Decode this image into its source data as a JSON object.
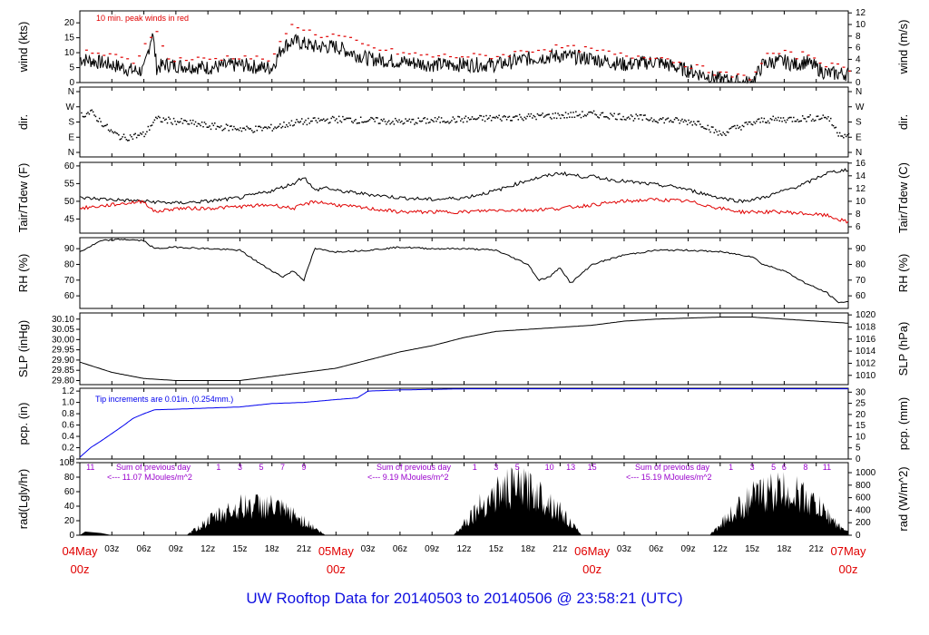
{
  "footer_title": "UW Rooftop Data for 20140503  to  20140506 @ 23:58:21  (UTC)",
  "colors": {
    "footer": "#1010e0",
    "red": "#e00000",
    "blue": "#0000ee",
    "purple": "#9900cc"
  },
  "chart_data": [
    {
      "type": "line",
      "name": "wind",
      "ylabel_left": "wind (kts)",
      "ylabel_right": "wind (m/s)",
      "ylim": [
        0,
        24
      ],
      "ticks_left": [
        "0",
        "5",
        "10",
        "15",
        "20"
      ],
      "ticks_right": [
        "0",
        "2",
        "4",
        "6",
        "8",
        "10",
        "12"
      ],
      "annotation": "10 min. peak winds in red",
      "series": [
        {
          "color": "#000000",
          "x": [
            0,
            3,
            5,
            6,
            6.8,
            7.2,
            8,
            12,
            15,
            17,
            18,
            19,
            20,
            21,
            22,
            24,
            27,
            30,
            33,
            36,
            39,
            42,
            45,
            48,
            51,
            54,
            57,
            60,
            62,
            63,
            64,
            65,
            66,
            67,
            68,
            69,
            70,
            72
          ],
          "values": [
            8,
            6,
            4,
            4,
            17,
            5,
            6,
            5,
            6,
            5,
            5,
            12,
            14,
            13,
            12,
            12,
            8,
            7,
            6,
            6,
            6,
            8,
            9,
            8,
            6,
            7,
            4,
            1,
            0,
            0,
            6,
            7,
            7,
            6,
            7,
            5,
            3,
            3
          ]
        },
        {
          "color": "#e00000",
          "x": [
            0,
            3,
            5,
            7,
            8,
            12,
            15,
            17,
            18,
            19,
            20,
            21,
            22,
            24,
            27,
            30,
            33,
            36,
            39,
            42,
            45,
            48,
            51,
            54,
            57,
            60,
            62,
            63,
            64,
            65,
            66,
            67,
            68,
            69,
            70,
            72
          ],
          "values": [
            11,
            9,
            7,
            19,
            8,
            8,
            9,
            8,
            8,
            16,
            20,
            18,
            16,
            16,
            12,
            10,
            9,
            9,
            9,
            11,
            12,
            11,
            9,
            9,
            6,
            3,
            2,
            2,
            9,
            10,
            10,
            9,
            10,
            8,
            6,
            5
          ]
        }
      ]
    },
    {
      "type": "scatter",
      "name": "dir",
      "ylabel_left": "dir.",
      "ylabel_right": "dir.",
      "ticks": [
        "N",
        "E",
        "S",
        "W",
        "N"
      ],
      "x": [
        0,
        1,
        2,
        3,
        4,
        5,
        6,
        7,
        8,
        10,
        12,
        14,
        16,
        18,
        20,
        22,
        24,
        26,
        28,
        30,
        32,
        34,
        36,
        38,
        40,
        42,
        44,
        46,
        48,
        50,
        52,
        54,
        56,
        58,
        60,
        61,
        62,
        64,
        66,
        68,
        70,
        71,
        72
      ],
      "values": [
        225,
        240,
        180,
        120,
        90,
        100,
        110,
        200,
        195,
        180,
        160,
        150,
        140,
        150,
        180,
        190,
        200,
        195,
        190,
        185,
        190,
        195,
        200,
        205,
        210,
        215,
        220,
        225,
        230,
        220,
        210,
        200,
        190,
        180,
        110,
        140,
        160,
        195,
        200,
        205,
        215,
        120,
        100
      ]
    },
    {
      "type": "line",
      "name": "tair_tdew",
      "ylabel_left": "Tair/Tdew (F)",
      "ylabel_right": "Tair/Tdew (C)",
      "ylim": [
        41,
        61
      ],
      "ticks_left": [
        "45",
        "50",
        "55",
        "60"
      ],
      "ticks_right": [
        "6",
        "8",
        "10",
        "12",
        "14",
        "16"
      ],
      "series": [
        {
          "color": "#000000",
          "x": [
            0,
            3,
            6,
            9,
            12,
            15,
            18,
            20,
            21,
            22,
            23,
            24,
            27,
            30,
            33,
            36,
            39,
            42,
            45,
            47,
            48,
            50,
            53,
            56,
            60,
            62,
            64,
            66,
            68,
            70,
            72
          ],
          "values": [
            51,
            50.5,
            50,
            49.5,
            50,
            51,
            53,
            55,
            57,
            53,
            54,
            53,
            52,
            51,
            50.5,
            51,
            53,
            56,
            58,
            57,
            57,
            56,
            55,
            54,
            51,
            50,
            51,
            53,
            55,
            58,
            59
          ]
        },
        {
          "color": "#e00000",
          "x": [
            0,
            3,
            6,
            7,
            9,
            12,
            15,
            18,
            20,
            21,
            22,
            24,
            27,
            30,
            33,
            36,
            39,
            42,
            45,
            48,
            51,
            54,
            57,
            60,
            62,
            64,
            66,
            68,
            70,
            72
          ],
          "values": [
            48,
            49,
            50,
            47,
            48,
            48,
            48.5,
            49,
            48,
            49,
            50,
            49,
            48,
            47,
            47,
            47,
            47.5,
            47.5,
            48,
            49,
            50,
            50.5,
            50,
            48,
            47,
            47,
            47,
            46.5,
            46,
            44
          ]
        }
      ]
    },
    {
      "type": "line",
      "name": "rh",
      "ylabel_left": "RH (%)",
      "ylabel_right": "RH (%)",
      "ylim": [
        52,
        97
      ],
      "ticks_left": [
        "60",
        "70",
        "80",
        "90"
      ],
      "ticks_right": [
        "60",
        "70",
        "80",
        "90"
      ],
      "series": [
        {
          "color": "#000000",
          "x": [
            0,
            2,
            4,
            6,
            7,
            9,
            12,
            15,
            17,
            18,
            19,
            20,
            21,
            22,
            24,
            27,
            30,
            33,
            36,
            39,
            42,
            43,
            44,
            45,
            46,
            48,
            51,
            54,
            57,
            60,
            63,
            64,
            66,
            68,
            70,
            71,
            72
          ],
          "values": [
            88,
            95,
            96,
            95,
            90,
            91,
            90,
            89,
            80,
            76,
            72,
            76,
            70,
            90,
            88,
            89,
            91,
            90,
            90,
            89,
            80,
            70,
            72,
            78,
            68,
            80,
            86,
            89,
            89,
            88,
            85,
            80,
            76,
            68,
            62,
            56,
            56
          ]
        }
      ]
    },
    {
      "type": "line",
      "name": "slp",
      "ylabel_left": "SLP (inHg)",
      "ylabel_right": "SLP (hPa)",
      "ylim": [
        29.78,
        30.13
      ],
      "ticks_left": [
        "29.80",
        "29.85",
        "29.90",
        "29.95",
        "30.00",
        "30.05",
        "30.10"
      ],
      "ticks_right": [
        "1010",
        "1012",
        "1014",
        "1016",
        "1018",
        "1020"
      ],
      "series": [
        {
          "color": "#000000",
          "x": [
            0,
            3,
            6,
            9,
            12,
            15,
            18,
            21,
            24,
            27,
            30,
            33,
            36,
            39,
            42,
            45,
            48,
            51,
            54,
            57,
            60,
            63,
            66,
            69,
            72
          ],
          "values": [
            29.89,
            29.84,
            29.81,
            29.8,
            29.8,
            29.8,
            29.82,
            29.84,
            29.86,
            29.9,
            29.94,
            29.97,
            30.01,
            30.04,
            30.05,
            30.06,
            30.07,
            30.09,
            30.1,
            30.105,
            30.11,
            30.11,
            30.1,
            30.09,
            30.08
          ]
        }
      ]
    },
    {
      "type": "line",
      "name": "pcp",
      "ylabel_left": "pcp. (in)",
      "ylabel_right": "pcp. (mm)",
      "ylim": [
        0,
        1.25
      ],
      "ticks_left": [
        "0",
        "0.2",
        "0.4",
        "0.6",
        "0.8",
        "1.0",
        "1.2"
      ],
      "ticks_right": [
        "0",
        "5",
        "10",
        "15",
        "20",
        "25",
        "30"
      ],
      "annotation": "Tip increments are 0.01in. (0.254mm.)",
      "series": [
        {
          "color": "#0000ee",
          "x": [
            0,
            1,
            2,
            3,
            4,
            5,
            6,
            7,
            9,
            12,
            15,
            18,
            21,
            24,
            26,
            27,
            30,
            33,
            36,
            39,
            42,
            45,
            48,
            51,
            54,
            57,
            60,
            63,
            66,
            69,
            72
          ],
          "values": [
            0.03,
            0.2,
            0.32,
            0.45,
            0.58,
            0.72,
            0.8,
            0.87,
            0.88,
            0.9,
            0.92,
            0.98,
            1.0,
            1.05,
            1.08,
            1.2,
            1.22,
            1.23,
            1.24,
            1.24,
            1.24,
            1.24,
            1.24,
            1.24,
            1.24,
            1.24,
            1.24,
            1.24,
            1.24,
            1.24,
            1.24
          ]
        }
      ]
    },
    {
      "type": "area",
      "name": "rad",
      "ylabel_left": "rad(Lgly/hr)",
      "ylabel_right": "rad (W/m^2)",
      "ylim": [
        0,
        100
      ],
      "ticks_left": [
        "0",
        "20",
        "40",
        "60",
        "80",
        "100"
      ],
      "ticks_right": [
        "0",
        "200",
        "400",
        "600",
        "800",
        "1000"
      ],
      "days": [
        {
          "start": 10,
          "peak": 60,
          "end": 23,
          "sum_label": "Sum of previous day",
          "sum_value": "<--- 11.07 MJoules/m^2",
          "hour_label": "11"
        },
        {
          "start": 35,
          "peak": 95,
          "end": 47,
          "sum_label": "Sum of previous day",
          "sum_value": "<--- 9.19 MJoules/m^2",
          "hour_label": "9"
        },
        {
          "start": 59,
          "peak": 90,
          "end": 72,
          "sum_label": "Sum of previous day",
          "sum_value": "<--- 15.19 MJoules/m^2",
          "hour_label": "15"
        }
      ],
      "hour_marks": [
        {
          "x": 1,
          "label": "11"
        },
        {
          "x": 13,
          "label": "1"
        },
        {
          "x": 15,
          "label": "3"
        },
        {
          "x": 17,
          "label": "5"
        },
        {
          "x": 19,
          "label": "7"
        },
        {
          "x": 21,
          "label": "9"
        },
        {
          "x": 37,
          "label": "1"
        },
        {
          "x": 39,
          "label": "3"
        },
        {
          "x": 41,
          "label": "5"
        },
        {
          "x": 44,
          "label": "10"
        },
        {
          "x": 46,
          "label": "13"
        },
        {
          "x": 48,
          "label": "15"
        },
        {
          "x": 61,
          "label": "1"
        },
        {
          "x": 63,
          "label": "3"
        },
        {
          "x": 65,
          "label": "5"
        },
        {
          "x": 66,
          "label": "6"
        },
        {
          "x": 68,
          "label": "8"
        },
        {
          "x": 70,
          "label": "11"
        }
      ]
    }
  ],
  "x_axis": {
    "range_hours": [
      0,
      72
    ],
    "minor_ticks": [
      {
        "h": 3,
        "label": "03z"
      },
      {
        "h": 6,
        "label": "06z"
      },
      {
        "h": 9,
        "label": "09z"
      },
      {
        "h": 12,
        "label": "12z"
      },
      {
        "h": 15,
        "label": "15z"
      },
      {
        "h": 18,
        "label": "18z"
      },
      {
        "h": 21,
        "label": "21z"
      },
      {
        "h": 27,
        "label": "03z"
      },
      {
        "h": 30,
        "label": "06z"
      },
      {
        "h": 33,
        "label": "09z"
      },
      {
        "h": 36,
        "label": "12z"
      },
      {
        "h": 39,
        "label": "15z"
      },
      {
        "h": 42,
        "label": "18z"
      },
      {
        "h": 45,
        "label": "21z"
      },
      {
        "h": 51,
        "label": "03z"
      },
      {
        "h": 54,
        "label": "06z"
      },
      {
        "h": 57,
        "label": "09z"
      },
      {
        "h": 60,
        "label": "12z"
      },
      {
        "h": 63,
        "label": "15z"
      },
      {
        "h": 66,
        "label": "18z"
      },
      {
        "h": 69,
        "label": "21z"
      }
    ],
    "day_ticks": [
      {
        "h": 0,
        "date": "04May",
        "time": "00z"
      },
      {
        "h": 24,
        "date": "05May",
        "time": "00z"
      },
      {
        "h": 48,
        "date": "06May",
        "time": "00z"
      },
      {
        "h": 72,
        "date": "07May",
        "time": "00z"
      }
    ]
  }
}
